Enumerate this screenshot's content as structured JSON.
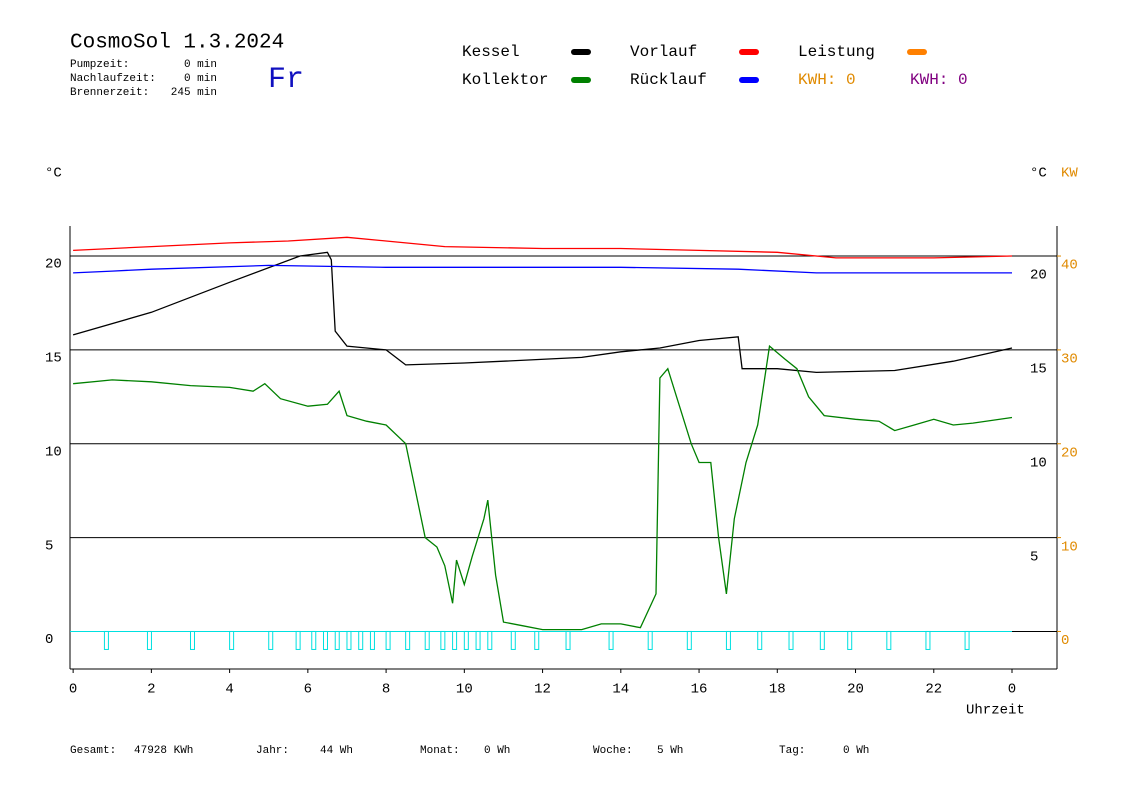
{
  "chart_data": {
    "type": "line",
    "title": "CosmoSol 1.3.2024",
    "weekday": "Fr",
    "info": [
      [
        "Pumpzeit:",
        "0 min"
      ],
      [
        "Nachlaufzeit:",
        "0 min"
      ],
      [
        "Brennerzeit:",
        "245 min"
      ]
    ],
    "kwh_labels": [
      {
        "text": "KWH: 0",
        "color": "#e08a00"
      },
      {
        "text": "KWH: 0",
        "color": "#800080"
      }
    ],
    "y_label": "°C",
    "y2_label": "°C",
    "y2_unit": "KW",
    "x_label": "Uhrzeit",
    "footer": [
      [
        "Gesamt:",
        "47928 KWh"
      ],
      [
        "Jahr:",
        "44 Wh"
      ],
      [
        "Monat:",
        "0 Wh"
      ],
      [
        "Woche:",
        "5 Wh"
      ],
      [
        "Tag:",
        "0 Wh"
      ]
    ],
    "xlim": [
      -0.08,
      25.15
    ],
    "xticks": [
      0,
      2,
      4,
      6,
      8,
      10,
      12,
      14,
      16,
      18,
      20,
      22,
      {
        "value": 24,
        "label": "0"
      }
    ],
    "ylim": [
      -2,
      21.6
    ],
    "yticks": [
      0,
      5,
      10,
      15,
      20
    ],
    "yticks_right": [
      5,
      10,
      15,
      20
    ],
    "y2lim": [
      -4,
      43.2
    ],
    "y2ticks": [
      0,
      10,
      20,
      30,
      40
    ],
    "grid": true,
    "series": [
      {
        "name": "Kessel",
        "color": "#000000",
        "x": [
          0,
          2,
          4,
          5.8,
          6.5,
          6.6,
          6.7,
          7,
          8,
          8.5,
          10,
          11,
          13,
          14,
          15,
          16,
          17,
          17.1,
          18,
          19,
          21,
          22.5,
          24
        ],
        "values": [
          15.8,
          17,
          18.6,
          20,
          20.2,
          19.8,
          16,
          15.2,
          15,
          14.2,
          14.3,
          14.4,
          14.6,
          14.9,
          15.1,
          15.5,
          15.7,
          14,
          14,
          13.8,
          13.9,
          14.4,
          15.1
        ]
      },
      {
        "name": "Kollektor",
        "color": "#008000",
        "x": [
          0,
          1,
          2,
          3,
          4,
          4.6,
          4.9,
          5.3,
          6,
          6.5,
          6.8,
          7,
          7.5,
          8,
          8.5,
          8.8,
          9,
          9.3,
          9.5,
          9.7,
          9.8,
          10,
          10.2,
          10.5,
          10.6,
          10.8,
          11,
          11.5,
          12,
          13,
          13.5,
          14,
          14.5,
          14.9,
          15,
          15.2,
          15.5,
          15.8,
          16,
          16.3,
          16.5,
          16.7,
          16.9,
          17.2,
          17.5,
          17.8,
          18.2,
          18.5,
          18.8,
          19.2,
          20,
          20.6,
          21,
          21.5,
          22,
          22.5,
          23,
          24
        ],
        "values": [
          13.2,
          13.4,
          13.3,
          13.1,
          13,
          12.8,
          13.2,
          12.4,
          12,
          12.1,
          12.8,
          11.5,
          11.2,
          11,
          10,
          7,
          5,
          4.5,
          3.5,
          1.5,
          3.8,
          2.5,
          4,
          6,
          7,
          3,
          0.5,
          0.3,
          0.1,
          0.1,
          0.4,
          0.4,
          0.2,
          2,
          13.5,
          14,
          12,
          10,
          9,
          9,
          5,
          2,
          6,
          9,
          11,
          15.2,
          14.5,
          14,
          12.5,
          11.5,
          11.3,
          11.2,
          10.7,
          11,
          11.3,
          11,
          11.1,
          11.4
        ]
      },
      {
        "name": "Vorlauf",
        "color": "#ff0000",
        "x": [
          0,
          2,
          4,
          5.5,
          7,
          8,
          9.5,
          12,
          14,
          16,
          18,
          19.5,
          22,
          24
        ],
        "values": [
          20.3,
          20.5,
          20.7,
          20.8,
          21,
          20.8,
          20.5,
          20.4,
          20.4,
          20.3,
          20.2,
          19.9,
          19.9,
          20
        ]
      },
      {
        "name": "Rücklauf",
        "color": "#0000ff",
        "x": [
          0,
          1,
          2,
          5,
          8,
          10,
          14,
          17,
          19,
          20,
          24
        ],
        "values": [
          19.1,
          19.2,
          19.3,
          19.5,
          19.4,
          19.4,
          19.4,
          19.3,
          19.1,
          19.1,
          19.1
        ]
      },
      {
        "name": "Leistung",
        "color": "#ff8000",
        "axis": "y2",
        "x": [],
        "values": []
      }
    ],
    "pulses": {
      "color": "#00e0e0",
      "x": [
        0.8,
        1.9,
        3,
        4,
        5,
        5.7,
        6.1,
        6.4,
        6.7,
        7,
        7.3,
        7.6,
        8,
        8.5,
        9,
        9.4,
        9.7,
        10,
        10.3,
        10.6,
        11.2,
        11.8,
        12.6,
        13.7,
        14.7,
        15.7,
        16.7,
        17.5,
        18.3,
        19.1,
        19.8,
        20.8,
        21.8,
        22.8
      ]
    }
  }
}
